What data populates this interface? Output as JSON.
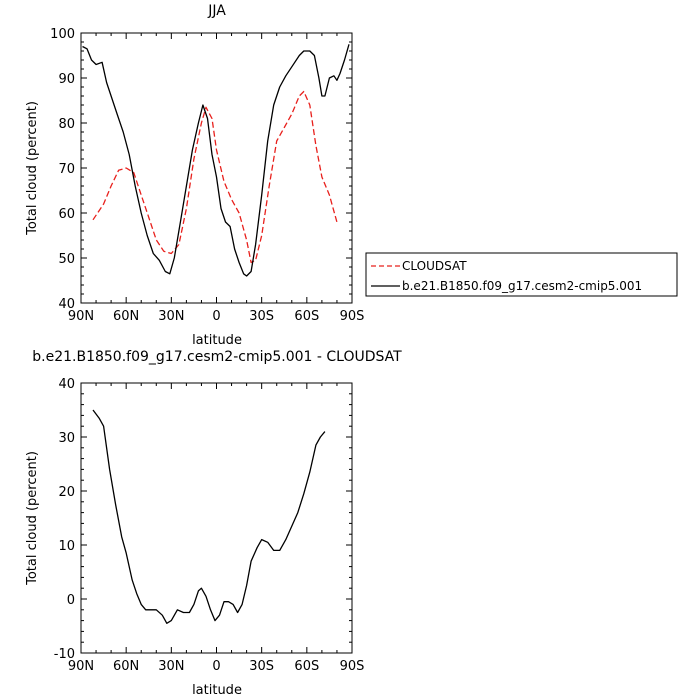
{
  "chart_data": [
    {
      "type": "line",
      "title": "JJA",
      "xlabel": "latitude",
      "ylabel": "Total cloud (percent)",
      "xlim": [
        90,
        -90
      ],
      "ylim": [
        40,
        100
      ],
      "x_ticks": [
        90,
        60,
        30,
        0,
        -30,
        -60,
        -90
      ],
      "x_tick_labels": [
        "90N",
        "60N",
        "30N",
        "0",
        "30S",
        "60S",
        "90S"
      ],
      "y_ticks": [
        40,
        50,
        60,
        70,
        80,
        90,
        100
      ],
      "y_tick_labels": [
        "40",
        "50",
        "60",
        "70",
        "80",
        "90",
        "100"
      ],
      "legend_position": "right",
      "series": [
        {
          "name": "CLOUDSAT",
          "color": "#e8201c",
          "dash": "dashed",
          "points": [
            [
              82,
              58.5
            ],
            [
              75,
              62
            ],
            [
              70,
              66
            ],
            [
              65,
              69.5
            ],
            [
              60,
              70
            ],
            [
              55,
              69
            ],
            [
              50,
              64
            ],
            [
              45,
              59
            ],
            [
              40,
              54
            ],
            [
              35,
              51.5
            ],
            [
              30,
              51
            ],
            [
              25,
              53
            ],
            [
              20,
              61
            ],
            [
              15,
              72
            ],
            [
              10,
              80
            ],
            [
              7,
              83.5
            ],
            [
              3,
              81
            ],
            [
              0,
              74
            ],
            [
              -5,
              67
            ],
            [
              -10,
              63
            ],
            [
              -15,
              60
            ],
            [
              -20,
              54
            ],
            [
              -23,
              49
            ],
            [
              -26,
              49.5
            ],
            [
              -30,
              55
            ],
            [
              -35,
              66
            ],
            [
              -40,
              76
            ],
            [
              -45,
              79
            ],
            [
              -50,
              82
            ],
            [
              -55,
              86
            ],
            [
              -58,
              87
            ],
            [
              -62,
              84
            ],
            [
              -66,
              75
            ],
            [
              -70,
              68
            ],
            [
              -75,
              64
            ],
            [
              -80,
              58
            ]
          ]
        },
        {
          "name": "b.e21.B1850.f09_g17.cesm2-cmip5.001",
          "color": "#000000",
          "dash": "solid",
          "points": [
            [
              89,
              97
            ],
            [
              86,
              96.5
            ],
            [
              83,
              94
            ],
            [
              80,
              93
            ],
            [
              76,
              93.5
            ],
            [
              73,
              89
            ],
            [
              70,
              86
            ],
            [
              66,
              82
            ],
            [
              62,
              78
            ],
            [
              58,
              73
            ],
            [
              54,
              66
            ],
            [
              50,
              60
            ],
            [
              46,
              55
            ],
            [
              42,
              51
            ],
            [
              38,
              49.5
            ],
            [
              34,
              47
            ],
            [
              31,
              46.5
            ],
            [
              28,
              50
            ],
            [
              24,
              58
            ],
            [
              20,
              66
            ],
            [
              16,
              74
            ],
            [
              12,
              80
            ],
            [
              9,
              84
            ],
            [
              6,
              81
            ],
            [
              3,
              73
            ],
            [
              0,
              68
            ],
            [
              -3,
              61
            ],
            [
              -6,
              58
            ],
            [
              -9,
              57
            ],
            [
              -12,
              52
            ],
            [
              -15,
              49
            ],
            [
              -18,
              46.5
            ],
            [
              -20,
              46
            ],
            [
              -23,
              47
            ],
            [
              -26,
              53
            ],
            [
              -30,
              64
            ],
            [
              -34,
              76
            ],
            [
              -38,
              84
            ],
            [
              -42,
              88
            ],
            [
              -46,
              90.5
            ],
            [
              -50,
              92.5
            ],
            [
              -55,
              95
            ],
            [
              -58,
              96
            ],
            [
              -62,
              96
            ],
            [
              -65,
              95
            ],
            [
              -68,
              90
            ],
            [
              -70,
              86
            ],
            [
              -72,
              86
            ],
            [
              -75,
              90
            ],
            [
              -78,
              90.5
            ],
            [
              -80,
              89.5
            ],
            [
              -82,
              91
            ],
            [
              -85,
              94
            ],
            [
              -88,
              97.5
            ]
          ]
        }
      ]
    },
    {
      "type": "line",
      "title": "b.e21.B1850.f09_g17.cesm2-cmip5.001 - CLOUDSAT",
      "xlabel": "latitude",
      "ylabel": "Total cloud (percent)",
      "xlim": [
        90,
        -90
      ],
      "ylim": [
        -10,
        40
      ],
      "x_ticks": [
        90,
        60,
        30,
        0,
        -30,
        -60,
        -90
      ],
      "x_tick_labels": [
        "90N",
        "60N",
        "30N",
        "0",
        "30S",
        "60S",
        "90S"
      ],
      "y_ticks": [
        -10,
        0,
        10,
        20,
        30,
        40
      ],
      "y_tick_labels": [
        "-10",
        "0",
        "10",
        "20",
        "30",
        "40"
      ],
      "series": [
        {
          "color": "#000000",
          "dash": "solid",
          "points": [
            [
              82,
              35
            ],
            [
              78,
              33.5
            ],
            [
              75,
              32
            ],
            [
              71,
              24
            ],
            [
              67,
              17.5
            ],
            [
              63,
              11.5
            ],
            [
              60,
              8.5
            ],
            [
              56,
              3.5
            ],
            [
              53,
              1
            ],
            [
              50,
              -1
            ],
            [
              47,
              -2
            ],
            [
              43,
              -2
            ],
            [
              40,
              -2
            ],
            [
              36,
              -3
            ],
            [
              33,
              -4.5
            ],
            [
              30,
              -4
            ],
            [
              26,
              -2
            ],
            [
              22,
              -2.5
            ],
            [
              18,
              -2.5
            ],
            [
              15,
              -1
            ],
            [
              12,
              1.5
            ],
            [
              10,
              2
            ],
            [
              7,
              0.5
            ],
            [
              4,
              -2
            ],
            [
              1,
              -4
            ],
            [
              -2,
              -3
            ],
            [
              -5,
              -0.5
            ],
            [
              -8,
              -0.5
            ],
            [
              -11,
              -1
            ],
            [
              -14,
              -2.5
            ],
            [
              -17,
              -1
            ],
            [
              -20,
              2.5
            ],
            [
              -23,
              7
            ],
            [
              -27,
              9.5
            ],
            [
              -30,
              11
            ],
            [
              -34,
              10.5
            ],
            [
              -38,
              9
            ],
            [
              -42,
              9
            ],
            [
              -46,
              11
            ],
            [
              -50,
              13.5
            ],
            [
              -54,
              16
            ],
            [
              -58,
              19.5
            ],
            [
              -62,
              23.5
            ],
            [
              -66,
              28.5
            ],
            [
              -69,
              30
            ],
            [
              -72,
              31
            ]
          ]
        }
      ]
    }
  ]
}
